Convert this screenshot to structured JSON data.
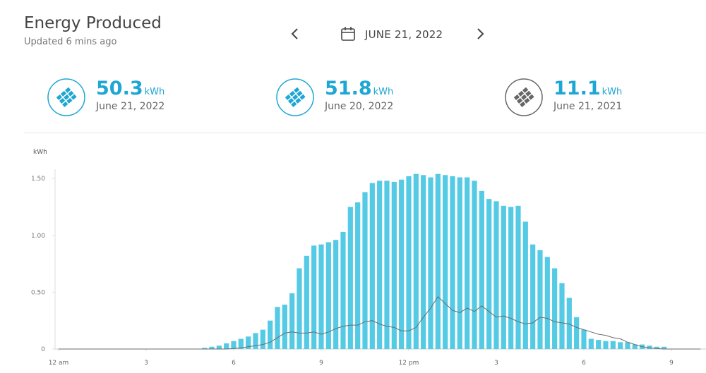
{
  "header": {
    "title": "Energy Produced",
    "subtitle": "Updated 6 mins ago",
    "date": "JUNE 21, 2022"
  },
  "stats": [
    {
      "value": 50.3,
      "unit": "kWh",
      "date": "June 21, 2022"
    },
    {
      "value": 51.8,
      "unit": "kWh",
      "date": "June 20, 2022"
    },
    {
      "value": 11.1,
      "unit": "kWh",
      "date": "June 21, 2021"
    }
  ],
  "chart_data": {
    "type": "bar",
    "y_label": "kWh",
    "x": [
      0,
      0.25,
      0.5,
      0.75,
      1,
      1.25,
      1.5,
      1.75,
      2,
      2.25,
      2.5,
      2.75,
      3,
      3.25,
      3.5,
      3.75,
      4,
      4.25,
      4.5,
      4.75,
      5,
      5.25,
      5.5,
      5.75,
      6,
      6.25,
      6.5,
      6.75,
      7,
      7.25,
      7.5,
      7.75,
      8,
      8.25,
      8.5,
      8.75,
      9,
      9.25,
      9.5,
      9.75,
      10,
      10.25,
      10.5,
      10.75,
      11,
      11.25,
      11.5,
      11.75,
      12,
      12.25,
      12.5,
      12.75,
      13,
      13.25,
      13.5,
      13.75,
      14,
      14.25,
      14.5,
      14.75,
      15,
      15.25,
      15.5,
      15.75,
      16,
      16.25,
      16.5,
      16.75,
      17,
      17.25,
      17.5,
      17.75,
      18,
      18.25,
      18.5,
      18.75,
      19,
      19.25,
      19.5,
      19.75,
      20,
      20.25,
      20.5,
      20.75,
      21,
      21.25,
      21.5,
      21.75,
      22
    ],
    "series": [
      {
        "type": "bar",
        "color": "#55cae5",
        "values": [
          0,
          0,
          0,
          0,
          0,
          0,
          0,
          0,
          0,
          0,
          0,
          0,
          0,
          0,
          0,
          0,
          0,
          0,
          0,
          0,
          0.01,
          0.02,
          0.03,
          0.05,
          0.07,
          0.09,
          0.11,
          0.14,
          0.17,
          0.25,
          0.37,
          0.39,
          0.49,
          0.71,
          0.82,
          0.91,
          0.92,
          0.94,
          0.96,
          1.03,
          1.25,
          1.29,
          1.38,
          1.46,
          1.48,
          1.48,
          1.47,
          1.49,
          1.52,
          1.54,
          1.53,
          1.51,
          1.54,
          1.53,
          1.52,
          1.51,
          1.51,
          1.48,
          1.39,
          1.32,
          1.3,
          1.26,
          1.25,
          1.26,
          1.12,
          0.92,
          0.87,
          0.81,
          0.71,
          0.58,
          0.45,
          0.28,
          0.17,
          0.09,
          0.08,
          0.07,
          0.07,
          0.06,
          0.06,
          0.04,
          0.04,
          0.03,
          0.02,
          0.02,
          0,
          0,
          0,
          0,
          0
        ]
      },
      {
        "type": "line",
        "color": "#6b6b6b",
        "values": [
          0,
          0,
          0,
          0,
          0,
          0,
          0,
          0,
          0,
          0,
          0,
          0,
          0,
          0,
          0,
          0,
          0,
          0,
          0,
          0,
          0,
          0,
          0,
          0,
          0.005,
          0.01,
          0.02,
          0.03,
          0.04,
          0.06,
          0.1,
          0.14,
          0.15,
          0.14,
          0.14,
          0.15,
          0.13,
          0.15,
          0.18,
          0.2,
          0.21,
          0.21,
          0.24,
          0.25,
          0.22,
          0.2,
          0.19,
          0.16,
          0.16,
          0.19,
          0.28,
          0.36,
          0.46,
          0.4,
          0.34,
          0.32,
          0.36,
          0.33,
          0.38,
          0.33,
          0.28,
          0.29,
          0.27,
          0.24,
          0.22,
          0.23,
          0.28,
          0.27,
          0.24,
          0.23,
          0.22,
          0.19,
          0.17,
          0.15,
          0.13,
          0.12,
          0.1,
          0.09,
          0.06,
          0.04,
          0.02,
          0.01,
          0.005,
          0,
          0,
          0,
          0,
          0,
          0
        ]
      }
    ],
    "xlim": [
      0,
      22
    ],
    "ylim": [
      0,
      1.6
    ],
    "xticks": [
      {
        "value": 0,
        "label": "12 am"
      },
      3,
      6,
      9,
      {
        "value": 12,
        "label": "12 pm"
      },
      {
        "value": 15,
        "label": "3"
      },
      {
        "value": 18,
        "label": "6"
      },
      {
        "value": 21,
        "label": "9"
      }
    ],
    "yticks": [
      0,
      {
        "value": 0.5,
        "label": "0.50"
      },
      {
        "value": 1,
        "label": "1.00"
      },
      {
        "value": 1.5,
        "label": "1.50"
      }
    ]
  }
}
